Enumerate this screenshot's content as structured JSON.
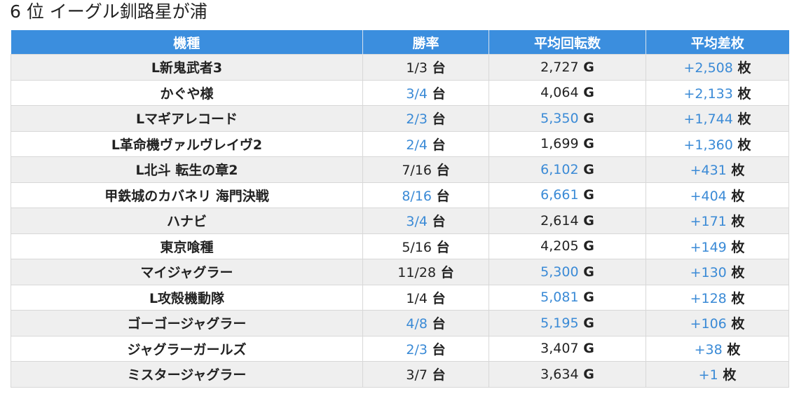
{
  "page": {
    "title": "6 位 イーグル釧路星が浦"
  },
  "colors": {
    "header_bg": "#3b8ede",
    "highlight_text": "#3a8ad6",
    "row_stripe": "#efefef"
  },
  "table": {
    "headers": [
      "機種",
      "勝率",
      "平均回転数",
      "平均差枚"
    ],
    "rows": [
      {
        "machine": "L新鬼武者3",
        "win": "1/3",
        "win_unit": "台",
        "win_hl": false,
        "games": "2,727",
        "games_unit": "G",
        "games_hl": false,
        "diff": "+2,508",
        "diff_unit": "枚",
        "diff_hl": true
      },
      {
        "machine": "かぐや様",
        "win": "3/4",
        "win_unit": "台",
        "win_hl": true,
        "games": "4,064",
        "games_unit": "G",
        "games_hl": false,
        "diff": "+2,133",
        "diff_unit": "枚",
        "diff_hl": true
      },
      {
        "machine": "Lマギアレコード",
        "win": "2/3",
        "win_unit": "台",
        "win_hl": true,
        "games": "5,350",
        "games_unit": "G",
        "games_hl": true,
        "diff": "+1,744",
        "diff_unit": "枚",
        "diff_hl": true
      },
      {
        "machine": "L革命機ヴァルヴレイヴ2",
        "win": "2/4",
        "win_unit": "台",
        "win_hl": true,
        "games": "1,699",
        "games_unit": "G",
        "games_hl": false,
        "diff": "+1,360",
        "diff_unit": "枚",
        "diff_hl": true
      },
      {
        "machine": "L北斗 転生の章2",
        "win": "7/16",
        "win_unit": "台",
        "win_hl": false,
        "games": "6,102",
        "games_unit": "G",
        "games_hl": true,
        "diff": "+431",
        "diff_unit": "枚",
        "diff_hl": true
      },
      {
        "machine": "甲鉄城のカバネリ 海門決戦",
        "win": "8/16",
        "win_unit": "台",
        "win_hl": true,
        "games": "6,661",
        "games_unit": "G",
        "games_hl": true,
        "diff": "+404",
        "diff_unit": "枚",
        "diff_hl": true
      },
      {
        "machine": "ハナビ",
        "win": "3/4",
        "win_unit": "台",
        "win_hl": true,
        "games": "2,614",
        "games_unit": "G",
        "games_hl": false,
        "diff": "+171",
        "diff_unit": "枚",
        "diff_hl": true
      },
      {
        "machine": "東京喰種",
        "win": "5/16",
        "win_unit": "台",
        "win_hl": false,
        "games": "4,205",
        "games_unit": "G",
        "games_hl": false,
        "diff": "+149",
        "diff_unit": "枚",
        "diff_hl": true
      },
      {
        "machine": "マイジャグラー",
        "win": "11/28",
        "win_unit": "台",
        "win_hl": false,
        "games": "5,300",
        "games_unit": "G",
        "games_hl": true,
        "diff": "+130",
        "diff_unit": "枚",
        "diff_hl": true
      },
      {
        "machine": "L攻殻機動隊",
        "win": "1/4",
        "win_unit": "台",
        "win_hl": false,
        "games": "5,081",
        "games_unit": "G",
        "games_hl": true,
        "diff": "+128",
        "diff_unit": "枚",
        "diff_hl": true
      },
      {
        "machine": "ゴーゴージャグラー",
        "win": "4/8",
        "win_unit": "台",
        "win_hl": true,
        "games": "5,195",
        "games_unit": "G",
        "games_hl": true,
        "diff": "+106",
        "diff_unit": "枚",
        "diff_hl": true
      },
      {
        "machine": "ジャグラーガールズ",
        "win": "2/3",
        "win_unit": "台",
        "win_hl": true,
        "games": "3,407",
        "games_unit": "G",
        "games_hl": false,
        "diff": "+38",
        "diff_unit": "枚",
        "diff_hl": true
      },
      {
        "machine": "ミスタージャグラー",
        "win": "3/7",
        "win_unit": "台",
        "win_hl": false,
        "games": "3,634",
        "games_unit": "G",
        "games_hl": false,
        "diff": "+1",
        "diff_unit": "枚",
        "diff_hl": true
      }
    ]
  }
}
